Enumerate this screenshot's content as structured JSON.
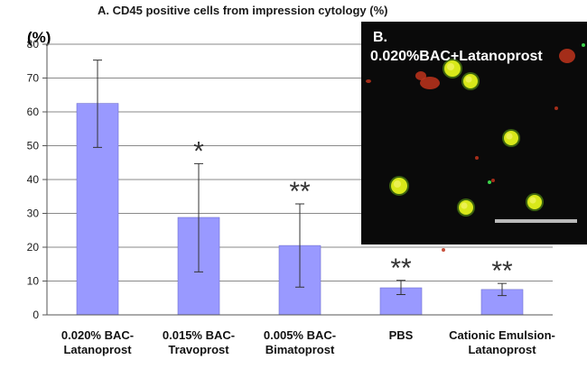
{
  "chart_data": {
    "type": "bar",
    "title": "A.  CD45 positive cells from impression cytology (%)",
    "ylabel": "(%)",
    "xlabel": "",
    "ylim": [
      0,
      80
    ],
    "yticks": [
      0,
      10,
      20,
      30,
      40,
      50,
      60,
      70,
      80
    ],
    "grid": "horizontal",
    "categories": [
      [
        "0.020% BAC-",
        "Latanoprost"
      ],
      [
        "0.015% BAC-",
        "Travoprost"
      ],
      [
        "0.005% BAC-",
        "Bimatoprost"
      ],
      [
        "PBS"
      ],
      [
        "Cationic Emulsion-",
        "Latanoprost"
      ]
    ],
    "values": [
      62.5,
      28.8,
      20.5,
      8.0,
      7.5
    ],
    "error_low": [
      49.5,
      12.7,
      8.2,
      6.0,
      5.7
    ],
    "error_high": [
      75.3,
      44.7,
      32.8,
      10.2,
      9.3
    ],
    "significance": [
      "",
      "*",
      "**",
      "**",
      "**"
    ],
    "bar_color": "#9999ff",
    "inset": {
      "label_line1": "B.",
      "label_line2": "0.020%BAC+Latanoprost",
      "background": "#0a0a0a",
      "cell_color": "#d8e81a"
    }
  }
}
